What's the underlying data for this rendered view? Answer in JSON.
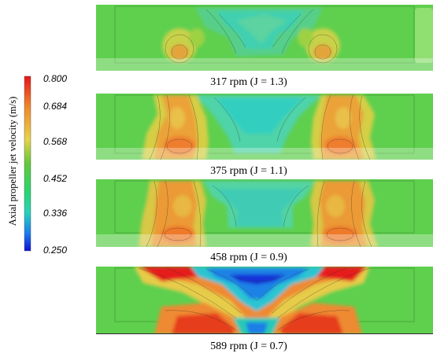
{
  "colorbar": {
    "title": "Axial propeller jet velocity (m/s)",
    "ticks": [
      "0.800",
      "0.684",
      "0.568",
      "0.452",
      "0.336",
      "0.250"
    ],
    "colors": [
      "#e8141b",
      "#f08a2c",
      "#e9d24a",
      "#62c93b",
      "#28d2ba",
      "#1c5ff0",
      "#1010d8"
    ]
  },
  "panels": [
    {
      "caption": "317 rpm (J = 1.3)",
      "intensity": 0.35
    },
    {
      "caption": "375 rpm (J = 1.1)",
      "intensity": 0.6
    },
    {
      "caption": "458 rpm (J = 0.9)",
      "intensity": 0.65
    },
    {
      "caption": "589 rpm (J = 0.7)",
      "intensity": 1.0
    }
  ]
}
